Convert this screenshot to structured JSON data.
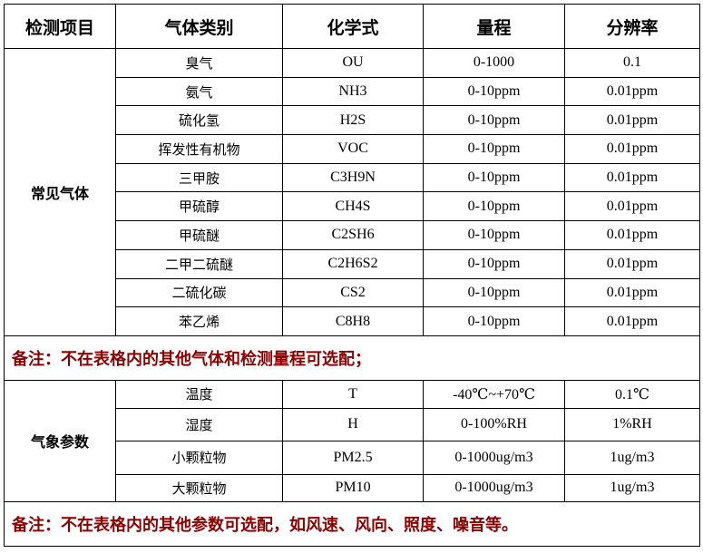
{
  "headers": [
    "检测项目",
    "气体类别",
    "化学式",
    "量程",
    "分辨率"
  ],
  "groups": [
    {
      "category": "常见气体",
      "rows": [
        [
          "臭气",
          "OU",
          "0-1000",
          "0.1"
        ],
        [
          "氨气",
          "NH3",
          "0-10ppm",
          "0.01ppm"
        ],
        [
          "硫化氢",
          "H2S",
          "0-10ppm",
          "0.01ppm"
        ],
        [
          "挥发性有机物",
          "VOC",
          "0-10ppm",
          "0.01ppm"
        ],
        [
          "三甲胺",
          "C3H9N",
          "0-10ppm",
          "0.01ppm"
        ],
        [
          "甲硫醇",
          "CH4S",
          "0-10ppm",
          "0.01ppm"
        ],
        [
          "甲硫醚",
          "C2SH6",
          "0-10ppm",
          "0.01ppm"
        ],
        [
          "二甲二硫醚",
          "C2H6S2",
          "0-10ppm",
          "0.01ppm"
        ],
        [
          "二硫化碳",
          "CS2",
          "0-10ppm",
          "0.01ppm"
        ],
        [
          "苯乙烯",
          "C8H8",
          "0-10ppm",
          "0.01ppm"
        ]
      ],
      "note": "备注：不在表格内的其他气体和检测量程可选配；"
    },
    {
      "category": "气象参数",
      "rows": [
        [
          "温度",
          "T",
          "-40℃~+70℃",
          "0.1℃"
        ],
        [
          "湿度",
          "H",
          "0-100%RH",
          "1%RH"
        ],
        [
          "小颗粒物",
          "PM2.5",
          "0-1000ug/m3",
          "1ug/m3"
        ],
        [
          "大颗粒物",
          "PM10",
          "0-1000ug/m3",
          "1ug/m3"
        ]
      ],
      "note": "备注：不在表格内的其他参数可选配，如风速、风向、照度、噪音等。"
    }
  ],
  "colors": {
    "note": "#8b0000",
    "border": "#000000"
  }
}
